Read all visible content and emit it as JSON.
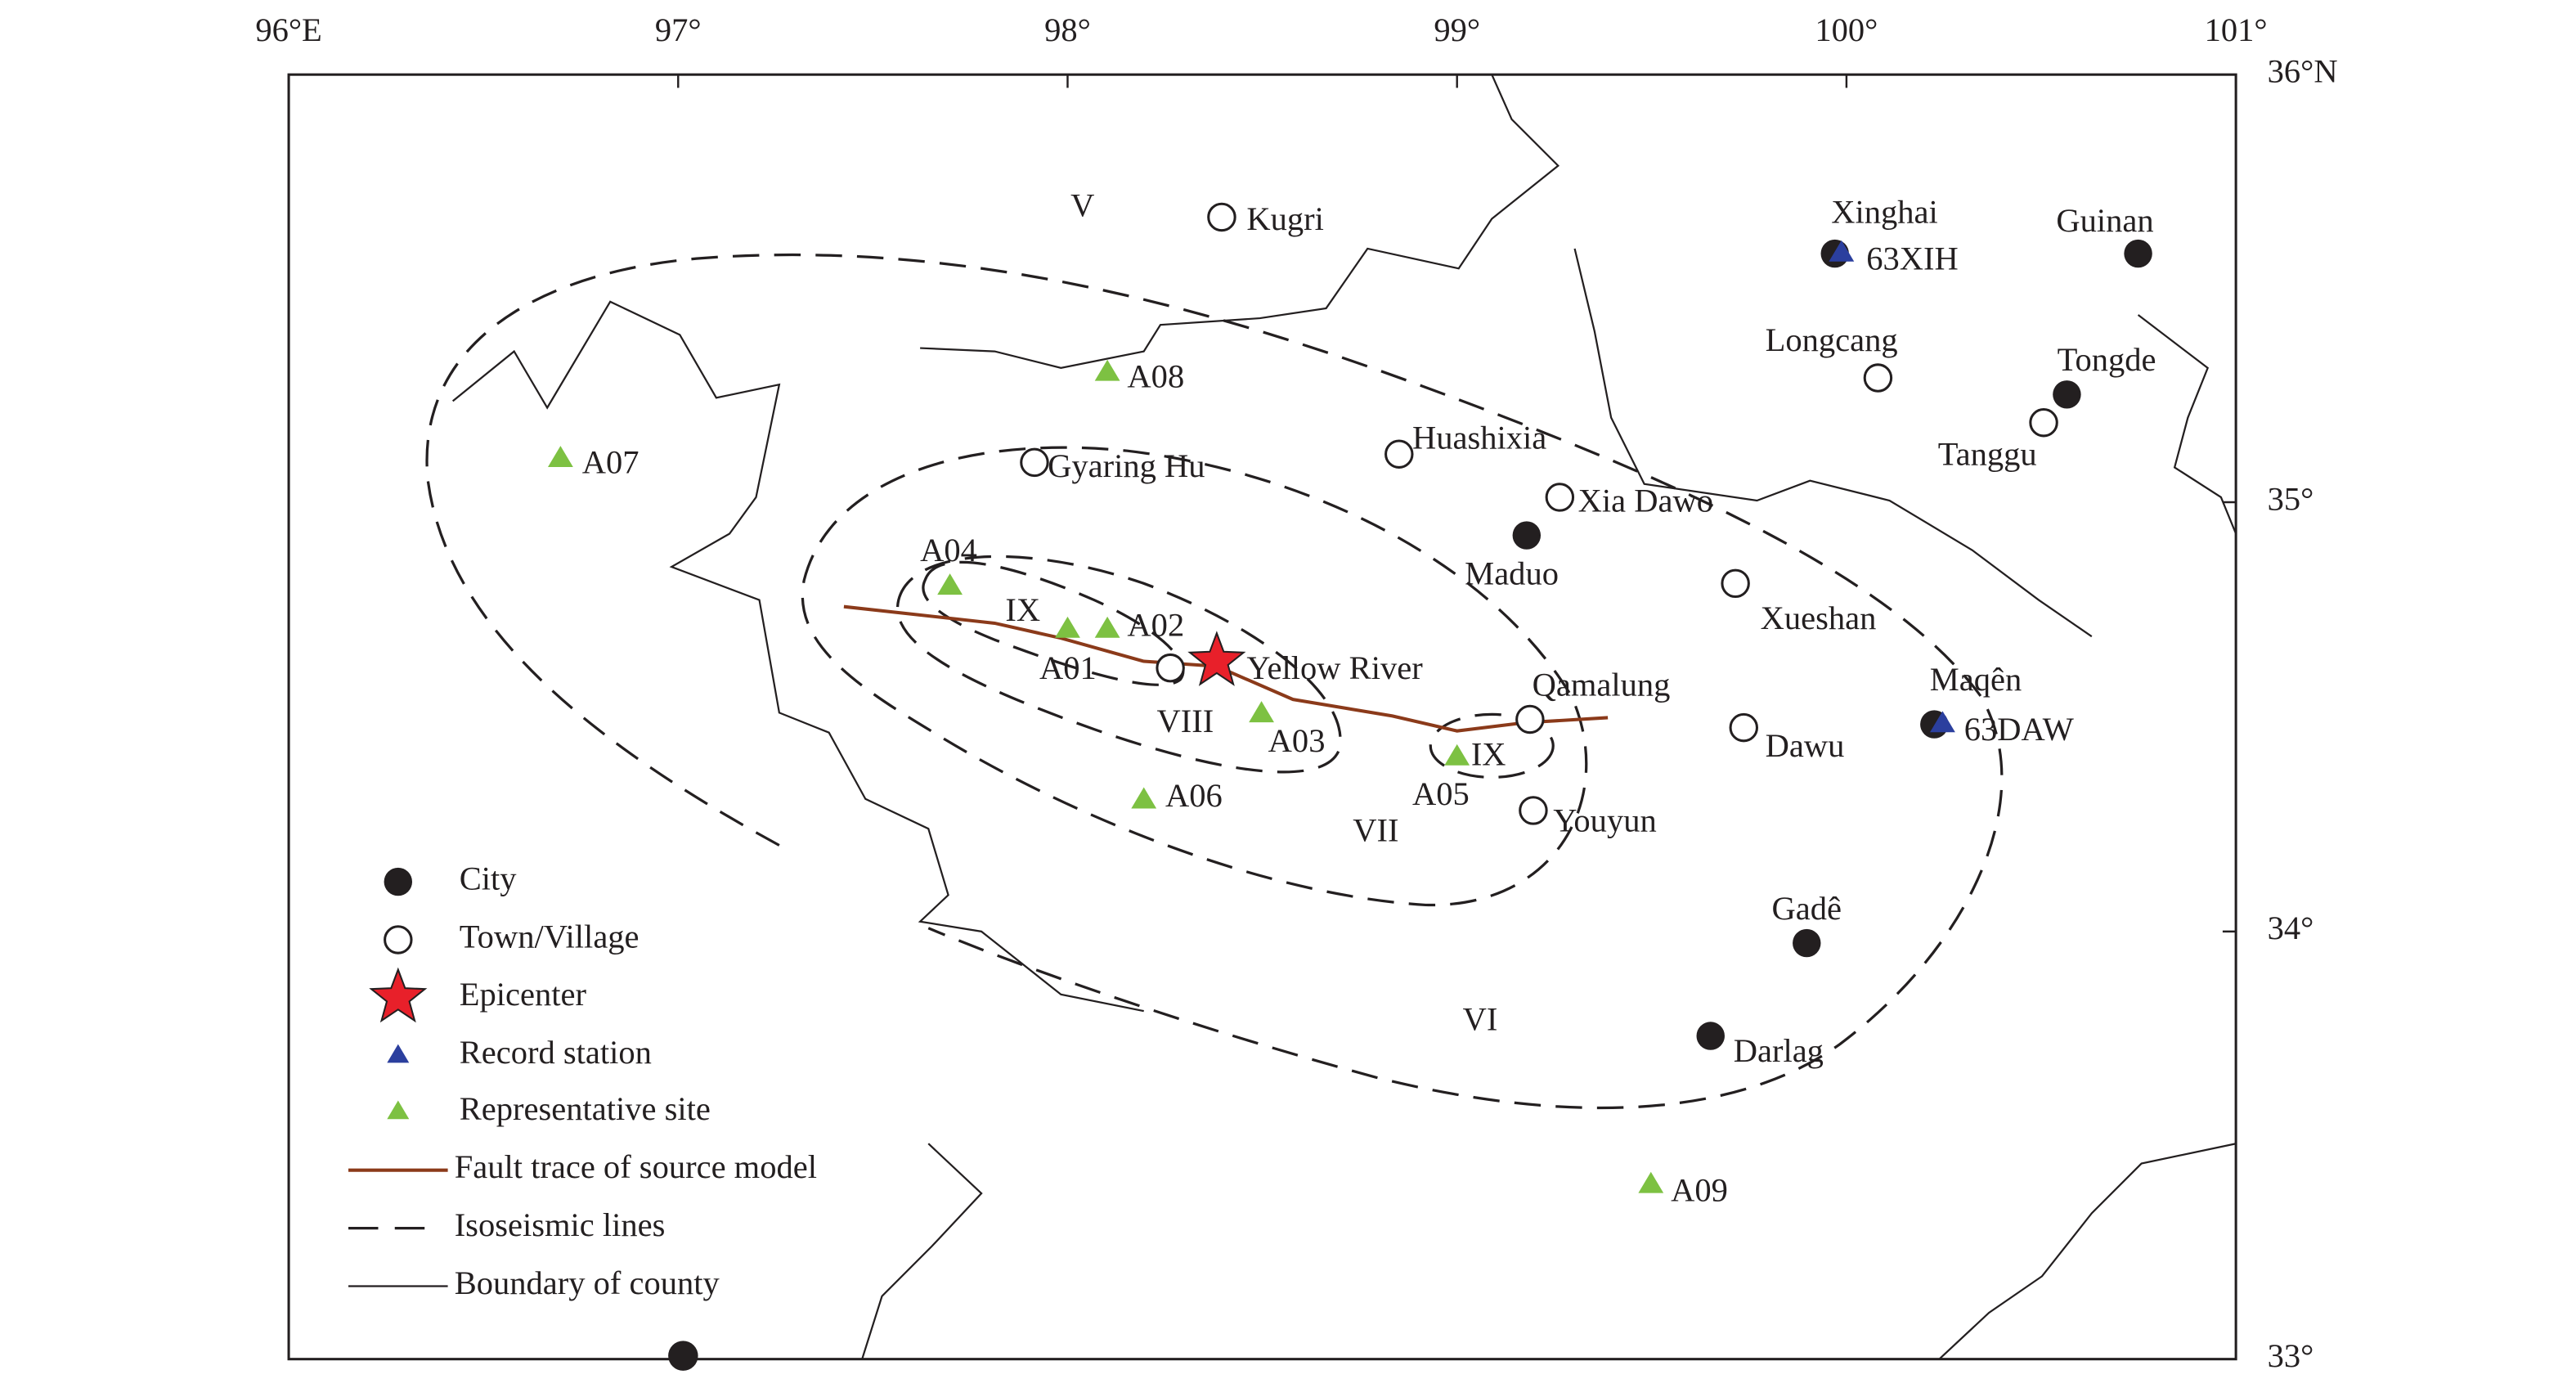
{
  "map": {
    "lon_labels": [
      "96°E",
      "97°",
      "98°",
      "99°",
      "100°",
      "101°"
    ],
    "lat_labels": [
      "36°N",
      "35°",
      "34°",
      "33°"
    ],
    "cities": [
      "Maduo",
      "Guinan",
      "Tongde",
      "Gadê",
      "Darlag",
      "Xinghai",
      "Maqên"
    ],
    "towns": [
      "Kugri",
      "Gyaring Hu",
      "Huashixia",
      "Xia Dawo",
      "Longcang",
      "Tanggu",
      "Xueshan",
      "Dawu",
      "Qamalung",
      "Youyun",
      "Yellow River"
    ],
    "record_stations": [
      "63XIH",
      "63DAW"
    ],
    "representative_sites": [
      "A01",
      "A02",
      "A03",
      "A04",
      "A05",
      "A06",
      "A07",
      "A08",
      "A09"
    ],
    "intensities": [
      "V",
      "IX",
      "VIII",
      "IX",
      "VII",
      "VI"
    ],
    "legend": [
      "City",
      "Town/Village",
      "Epicenter",
      "Record station",
      "Representative site",
      "Fault trace of source model",
      "Isoseismic lines",
      "Boundary of county"
    ]
  }
}
